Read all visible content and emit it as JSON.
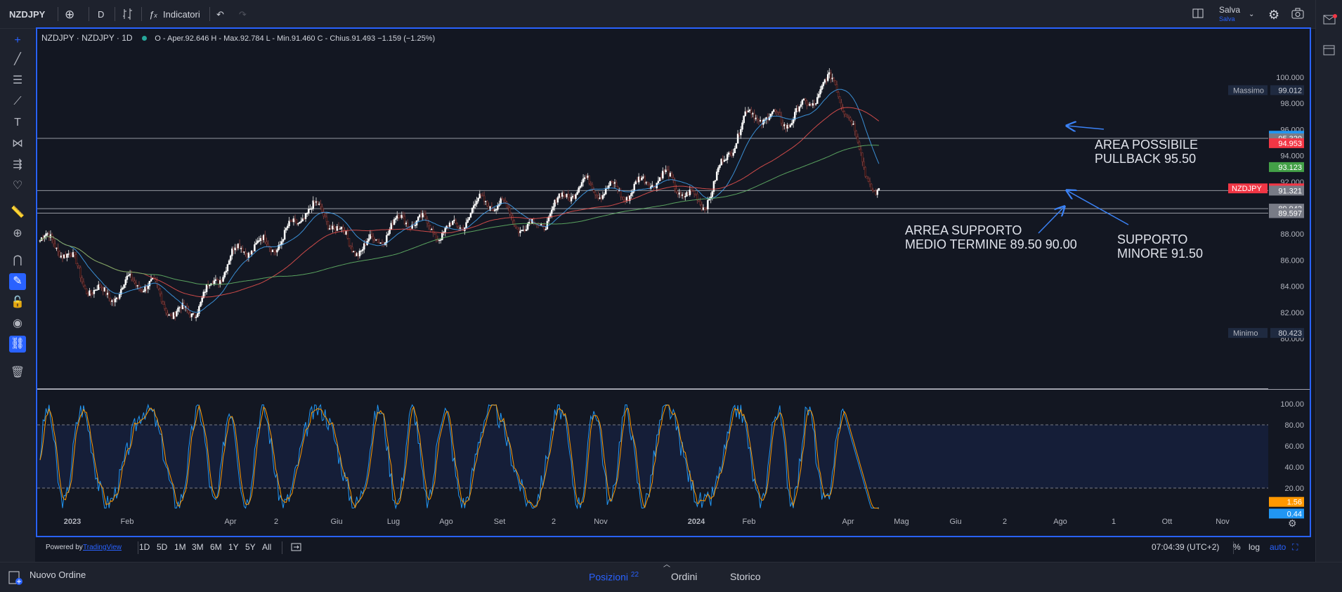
{
  "toolbar": {
    "symbol": "NZDJPY",
    "interval": "D",
    "indicators_label": "Indicatori",
    "save_label": "Salva",
    "save_sub": "Salva"
  },
  "legend": {
    "title": "NZDJPY · NZDJPY · 1D",
    "ohlc": "O - Aper.92.646  H - Max.92.784  L - Min.91.460  C - Chius.91.493  −1.159 (−1.25%)"
  },
  "price_axis": {
    "ticks": [
      "100.000",
      "98.000",
      "96.000",
      "94.000",
      "92.000",
      "88.000",
      "86.000",
      "84.000",
      "82.000",
      "80.000"
    ],
    "max_label": "Massimo",
    "max_value": "99.012",
    "min_label": "Minimo",
    "min_value": "80.423",
    "tags": [
      {
        "text": "95.524",
        "price": 95.524,
        "color": "#2196f3"
      },
      {
        "text": "95.320",
        "price": 95.32,
        "color": "#787b86"
      },
      {
        "text": "94.953",
        "price": 94.953,
        "color": "#f23645"
      },
      {
        "text": "93.123",
        "price": 93.123,
        "color": "#43a047"
      },
      {
        "text": "91.493",
        "price": 91.493,
        "color": "#f23645"
      },
      {
        "text": "91.321",
        "price": 91.321,
        "color": "#787b86"
      },
      {
        "text": "89.942",
        "price": 89.942,
        "color": "#787b86"
      },
      {
        "text": "89.597",
        "price": 89.597,
        "color": "#787b86"
      }
    ],
    "symbol_tag": "NZDJPY"
  },
  "osc_axis": {
    "ticks": [
      "100.00",
      "80.00",
      "60.00",
      "40.00",
      "20.00"
    ],
    "k_value": "1.56",
    "d_value": "0.44"
  },
  "time_axis": [
    "2023",
    "Feb",
    "Apr",
    "2",
    "Giu",
    "Lug",
    "Ago",
    "Set",
    "2",
    "Nov",
    "2024",
    "Feb",
    "Apr",
    "Mag",
    "Giu",
    "2",
    "Ago",
    "1",
    "Ott",
    "Nov"
  ],
  "annotations": {
    "pullback": [
      "AREA POSSIBILE",
      "PULLBACK 95.50"
    ],
    "support_medium": [
      "ARREA SUPPORTO",
      "MEDIO TERMINE 89.50 90.00"
    ],
    "support_minor": [
      "SUPPORTO",
      "MINORE 91.50"
    ]
  },
  "bottom": {
    "powered": "Powered by",
    "tv": "TradingView",
    "ranges": [
      "1D",
      "5D",
      "1M",
      "3M",
      "6M",
      "1Y",
      "5Y",
      "All"
    ],
    "clock": "07:04:39 (UTC+2)",
    "pct": "%",
    "log": "log",
    "auto": "auto"
  },
  "panel": {
    "new_order": "Nuovo Ordine",
    "tabs": [
      "Posizioni",
      "Ordini",
      "Storico"
    ],
    "positions_count": "22"
  },
  "colors": {
    "bg": "#131722",
    "up": "#ffffff",
    "down": "#5b2f2f",
    "ema_fast": "#42a5f5",
    "ema_mid": "#ef5350",
    "ema_slow": "#66bb6a",
    "k": "#2196f3",
    "d": "#ff9800",
    "accent": "#2962ff"
  },
  "chart_data": {
    "type": "candlestick",
    "title": "NZDJPY · NZDJPY · 1D",
    "ylim": [
      80,
      100
    ],
    "horizontal_levels": [
      95.32,
      91.321,
      89.942,
      89.597
    ],
    "close_series": [
      {
        "t": "2023-01",
        "close": 87.5
      },
      {
        "t": "2023-02",
        "close": 84.4
      },
      {
        "t": "2023-03",
        "close": 84.0
      },
      {
        "t": "2023-04",
        "close": 82.2
      },
      {
        "t": "2023-05",
        "close": 84.2
      },
      {
        "t": "2023-06",
        "close": 87.6
      },
      {
        "t": "2023-07",
        "close": 89.3
      },
      {
        "t": "2023-08",
        "close": 87.8
      },
      {
        "t": "2023-09",
        "close": 88.0
      },
      {
        "t": "2023-10",
        "close": 88.9
      },
      {
        "t": "2023-11",
        "close": 89.7
      },
      {
        "t": "2023-12",
        "close": 89.2
      },
      {
        "t": "2024-01",
        "close": 90.4
      },
      {
        "t": "2024-02",
        "close": 92.2
      },
      {
        "t": "2024-03",
        "close": 91.4
      },
      {
        "t": "2024-04",
        "close": 91.2
      },
      {
        "t": "2024-05",
        "close": 96.0
      },
      {
        "t": "2024-06",
        "close": 97.8
      },
      {
        "t": "2024-07-10",
        "close": 98.8
      },
      {
        "t": "2024-07-19",
        "close": 91.493
      }
    ],
    "oscillator": {
      "name": "Stochastic",
      "k_last": 1.56,
      "d_last": 0.44,
      "bands": [
        20,
        80
      ]
    }
  }
}
